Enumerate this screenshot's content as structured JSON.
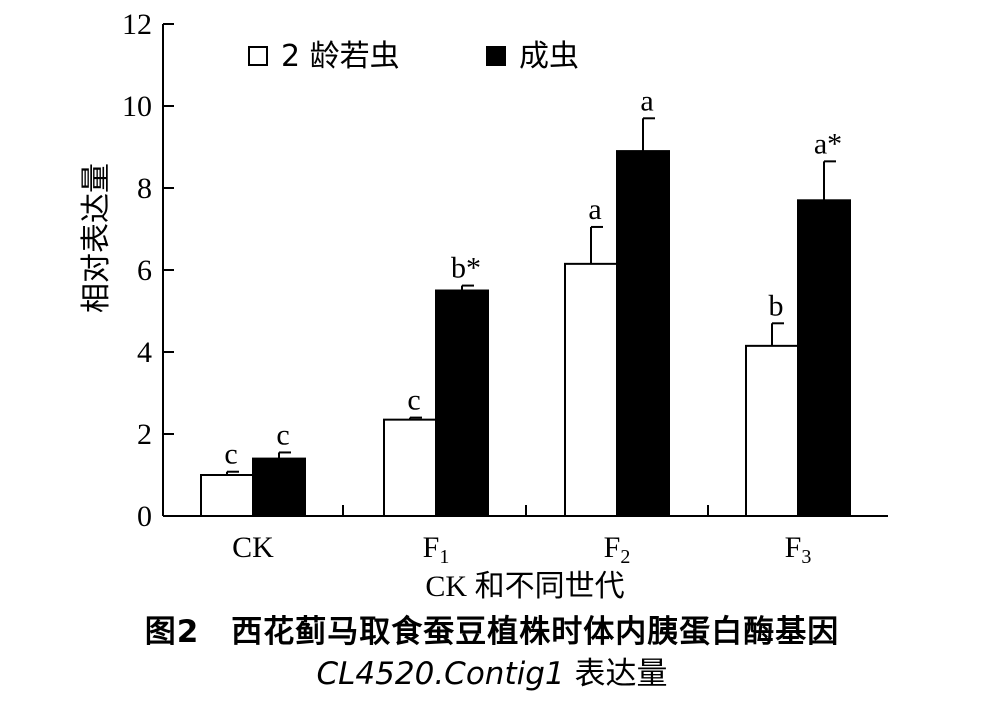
{
  "chart_data": {
    "type": "bar",
    "categories": [
      "CK",
      "F1",
      "F2",
      "F3"
    ],
    "xlabel": "CK 和不同世代",
    "ylabel": "相对表达量",
    "ylim": [
      0,
      12
    ],
    "yticks": [
      0,
      2,
      4,
      6,
      8,
      10,
      12
    ],
    "legend_position": "top-left",
    "series": [
      {
        "name": "2 龄若虫",
        "color": "#ffffff",
        "values": [
          1.0,
          2.35,
          6.15,
          4.15
        ],
        "errors": [
          0.08,
          0.05,
          0.9,
          0.55
        ],
        "labels": [
          "c",
          "c",
          "a",
          "b"
        ]
      },
      {
        "name": "成虫",
        "color": "#000000",
        "values": [
          1.4,
          5.5,
          8.9,
          7.7
        ],
        "errors": [
          0.15,
          0.12,
          0.8,
          0.95
        ],
        "labels": [
          "c",
          "b*",
          "a",
          "a*"
        ]
      }
    ]
  },
  "caption": {
    "line1": "图2　西花蓟马取食蚕豆植株时体内胰蛋白酶基因",
    "gene": "CL4520.Contig1",
    "line2_rest": " 表达量"
  }
}
